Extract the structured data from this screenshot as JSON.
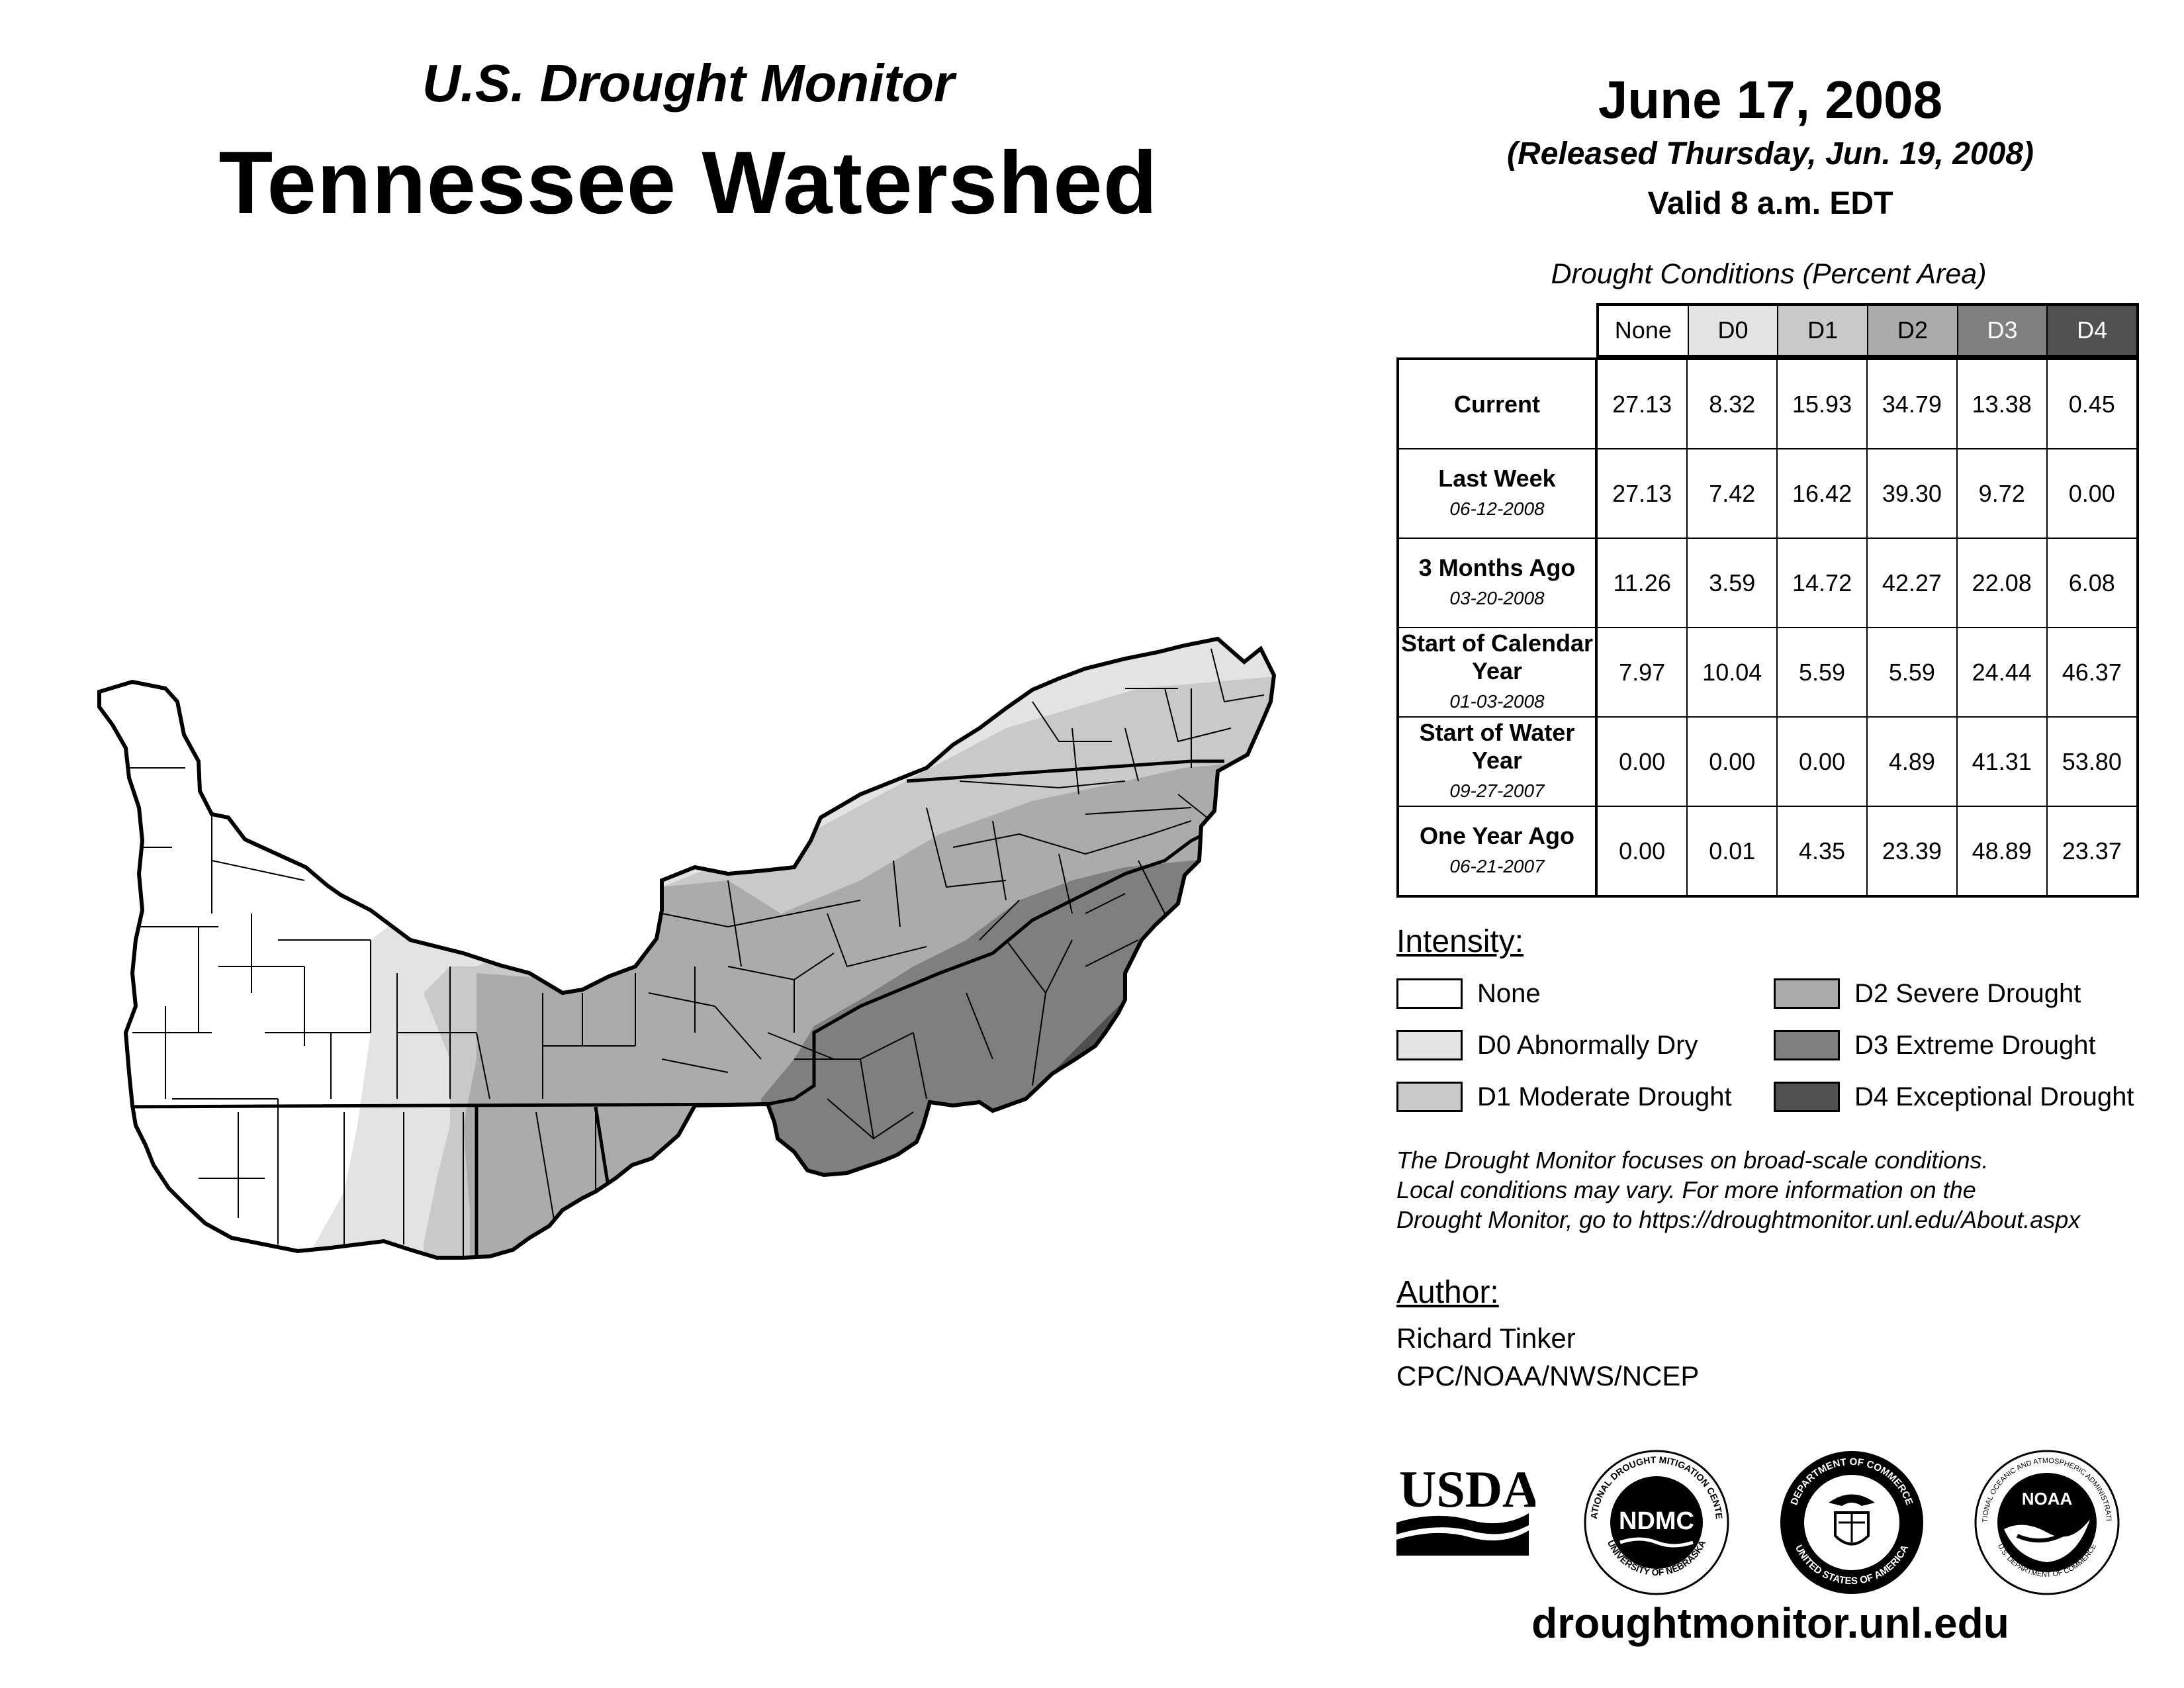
{
  "header": {
    "subtitle": "U.S. Drought Monitor",
    "title": "Tennessee Watershed",
    "date": "June 17, 2008",
    "released": "(Released Thursday, Jun. 19, 2008)",
    "valid": "Valid 8 a.m. EDT"
  },
  "table": {
    "caption": "Drought Conditions (Percent Area)",
    "columns": [
      "None",
      "D0",
      "D1",
      "D2",
      "D3",
      "D4"
    ],
    "rows": [
      {
        "label": "Current",
        "date": "",
        "values": [
          "27.13",
          "8.32",
          "15.93",
          "34.79",
          "13.38",
          "0.45"
        ]
      },
      {
        "label": "Last Week",
        "date": "06-12-2008",
        "values": [
          "27.13",
          "7.42",
          "16.42",
          "39.30",
          "9.72",
          "0.00"
        ]
      },
      {
        "label": "3 Months Ago",
        "date": "03-20-2008",
        "values": [
          "11.26",
          "3.59",
          "14.72",
          "42.27",
          "22.08",
          "6.08"
        ]
      },
      {
        "label": "Start of Calendar Year",
        "date": "01-03-2008",
        "values": [
          "7.97",
          "10.04",
          "5.59",
          "5.59",
          "24.44",
          "46.37"
        ]
      },
      {
        "label": "Start of Water Year",
        "date": "09-27-2007",
        "values": [
          "0.00",
          "0.00",
          "0.00",
          "4.89",
          "41.31",
          "53.80"
        ]
      },
      {
        "label": "One Year Ago",
        "date": "06-21-2007",
        "values": [
          "0.00",
          "0.01",
          "4.35",
          "23.39",
          "48.89",
          "23.37"
        ]
      }
    ]
  },
  "legend": {
    "title": "Intensity:",
    "items": [
      {
        "label": "None",
        "color": "#ffffff"
      },
      {
        "label": "D0 Abnormally Dry",
        "color": "#e3e3e3"
      },
      {
        "label": "D1 Moderate Drought",
        "color": "#c9c9c9"
      },
      {
        "label": "D2 Severe Drought",
        "color": "#ababab"
      },
      {
        "label": "D3 Extreme Drought",
        "color": "#7f7f7f"
      },
      {
        "label": "D4 Exceptional Drought",
        "color": "#505050"
      }
    ]
  },
  "note": {
    "line1": "The Drought Monitor focuses on broad-scale conditions.",
    "line2": "Local conditions may vary. For more information on the",
    "line3": "Drought Monitor, go to https://droughtmonitor.unl.edu/About.aspx"
  },
  "author": {
    "title": "Author:",
    "name": "Richard Tinker",
    "org": "CPC/NOAA/NWS/NCEP"
  },
  "logos": {
    "usda": "USDA",
    "ndmc": "NDMC",
    "ndmc_top": "NATIONAL DROUGHT MITIGATION CENTER",
    "ndmc_bottom": "UNIVERSITY OF NEBRASKA",
    "doc_top": "DEPARTMENT OF COMMERCE",
    "doc_bottom": "UNITED STATES OF AMERICA",
    "noaa": "NOAA",
    "noaa_top": "NATIONAL OCEANIC AND ATMOSPHERIC ADMINISTRATION",
    "noaa_bottom": "U.S. DEPARTMENT OF COMMERCE"
  },
  "footer": {
    "url": "droughtmonitor.unl.edu"
  }
}
